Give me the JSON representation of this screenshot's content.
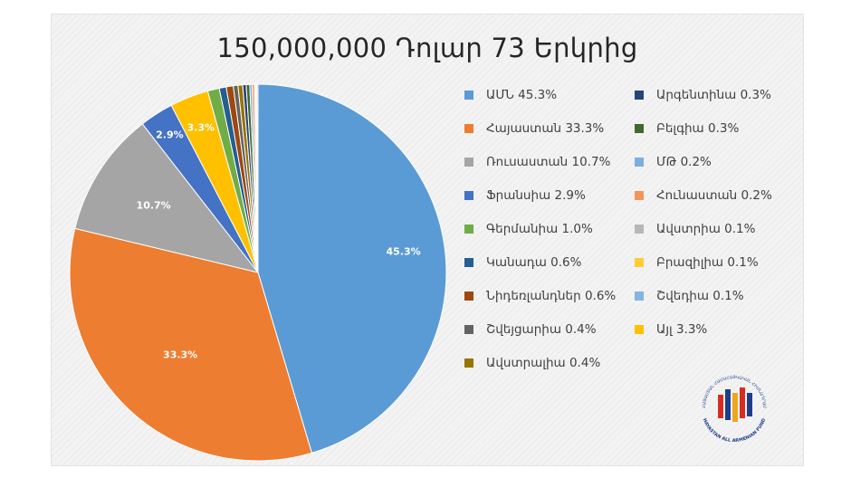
{
  "chart_data": {
    "type": "pie",
    "title": "150,000,000 Դոլար 73 Երկրից",
    "slices": [
      {
        "label": "ԱՄՆ",
        "value": 45.3,
        "legend": "ԱՄՆ  45.3%",
        "data_label": "45.3%",
        "color": "#5b9bd5"
      },
      {
        "label": "Հայաստան",
        "value": 33.3,
        "legend": "Հայաստան 33.3%",
        "data_label": "33.3%",
        "color": "#ed7d31"
      },
      {
        "label": "Ռուսաստան",
        "value": 10.7,
        "legend": "Ռուսաստան 10.7%",
        "data_label": "10.7%",
        "color": "#a5a5a5"
      },
      {
        "label": "Ֆրանսիա",
        "value": 2.9,
        "legend": "Ֆրանսիա  2.9%",
        "data_label": "2.9%",
        "color": "#4472c4"
      },
      {
        "label": "Այլ",
        "value": 3.3,
        "legend": "Այլ  3.3%",
        "data_label": "3.3%",
        "color": "#ffc000"
      },
      {
        "label": "Գերմանիա",
        "value": 1.0,
        "legend": "Գերմանիա  1.0%",
        "data_label": "",
        "color": "#70ad47"
      },
      {
        "label": "Կանադա",
        "value": 0.6,
        "legend": "Կանադա  0.6%",
        "data_label": "",
        "color": "#255e91"
      },
      {
        "label": "Նիդեռլանդներ",
        "value": 0.6,
        "legend": "Նիդեռլանդներ  0.6%",
        "data_label": "",
        "color": "#9e480e"
      },
      {
        "label": "Շվեյցարիա",
        "value": 0.4,
        "legend": "Շվեյցարիա  0.4%",
        "data_label": "",
        "color": "#636363"
      },
      {
        "label": "Ավստրալիա",
        "value": 0.4,
        "legend": "Ավստրալիա  0.4%",
        "data_label": "",
        "color": "#997300"
      },
      {
        "label": "Արգենտինա",
        "value": 0.3,
        "legend": "Արգենտինա  0.3%",
        "data_label": "",
        "color": "#264478"
      },
      {
        "label": "Բելգիա",
        "value": 0.3,
        "legend": "Բելգիա  0.3%",
        "data_label": "",
        "color": "#43682b"
      },
      {
        "label": "ՄԹ",
        "value": 0.2,
        "legend": "ՄԹ  0.2%",
        "data_label": "",
        "color": "#7cafdd"
      },
      {
        "label": "Հունաստան",
        "value": 0.2,
        "legend": "Հունաստան  0.2%",
        "data_label": "",
        "color": "#f1975a"
      },
      {
        "label": "Ավստրիա",
        "value": 0.1,
        "legend": "Ավստրիա  0.1%",
        "data_label": "",
        "color": "#b7b7b7"
      },
      {
        "label": "Բրազիլիա",
        "value": 0.1,
        "legend": "Բրազիլիա  0.1%",
        "data_label": "",
        "color": "#ffcd33"
      },
      {
        "label": "Շվեդիա",
        "value": 0.1,
        "legend": "Շվեդիա  0.1%",
        "data_label": "",
        "color": "#84b4e0"
      }
    ],
    "legend_order": [
      "ԱՄՆ",
      "Հայաստան",
      "Ռուսաստան",
      "Ֆրանսիա",
      "Գերմանիա",
      "Կանադա",
      "Նիդեռլանդներ",
      "Շվեյցարիա",
      "Ավստրալիա",
      "Արգենտինա",
      "Բելգիա",
      "ՄԹ",
      "Հունաստան",
      "Ավստրիա",
      "Բրազիլիա",
      "Շվեդիա",
      "Այլ"
    ],
    "legend_position": "right",
    "data_label_color": "#ffffff"
  },
  "logo": {
    "text_top": "ՀԱՅԱՍՏԱՆ ՀԱՄԱՀԱՅԿԱԿԱՆ ՀԻՄՆԱԴՐԱՄ",
    "text_bottom": "HAYASTAN ALL ARMENIAN FUND",
    "colors": [
      "#d62d20",
      "#f0a51e",
      "#1d3f8a"
    ]
  }
}
